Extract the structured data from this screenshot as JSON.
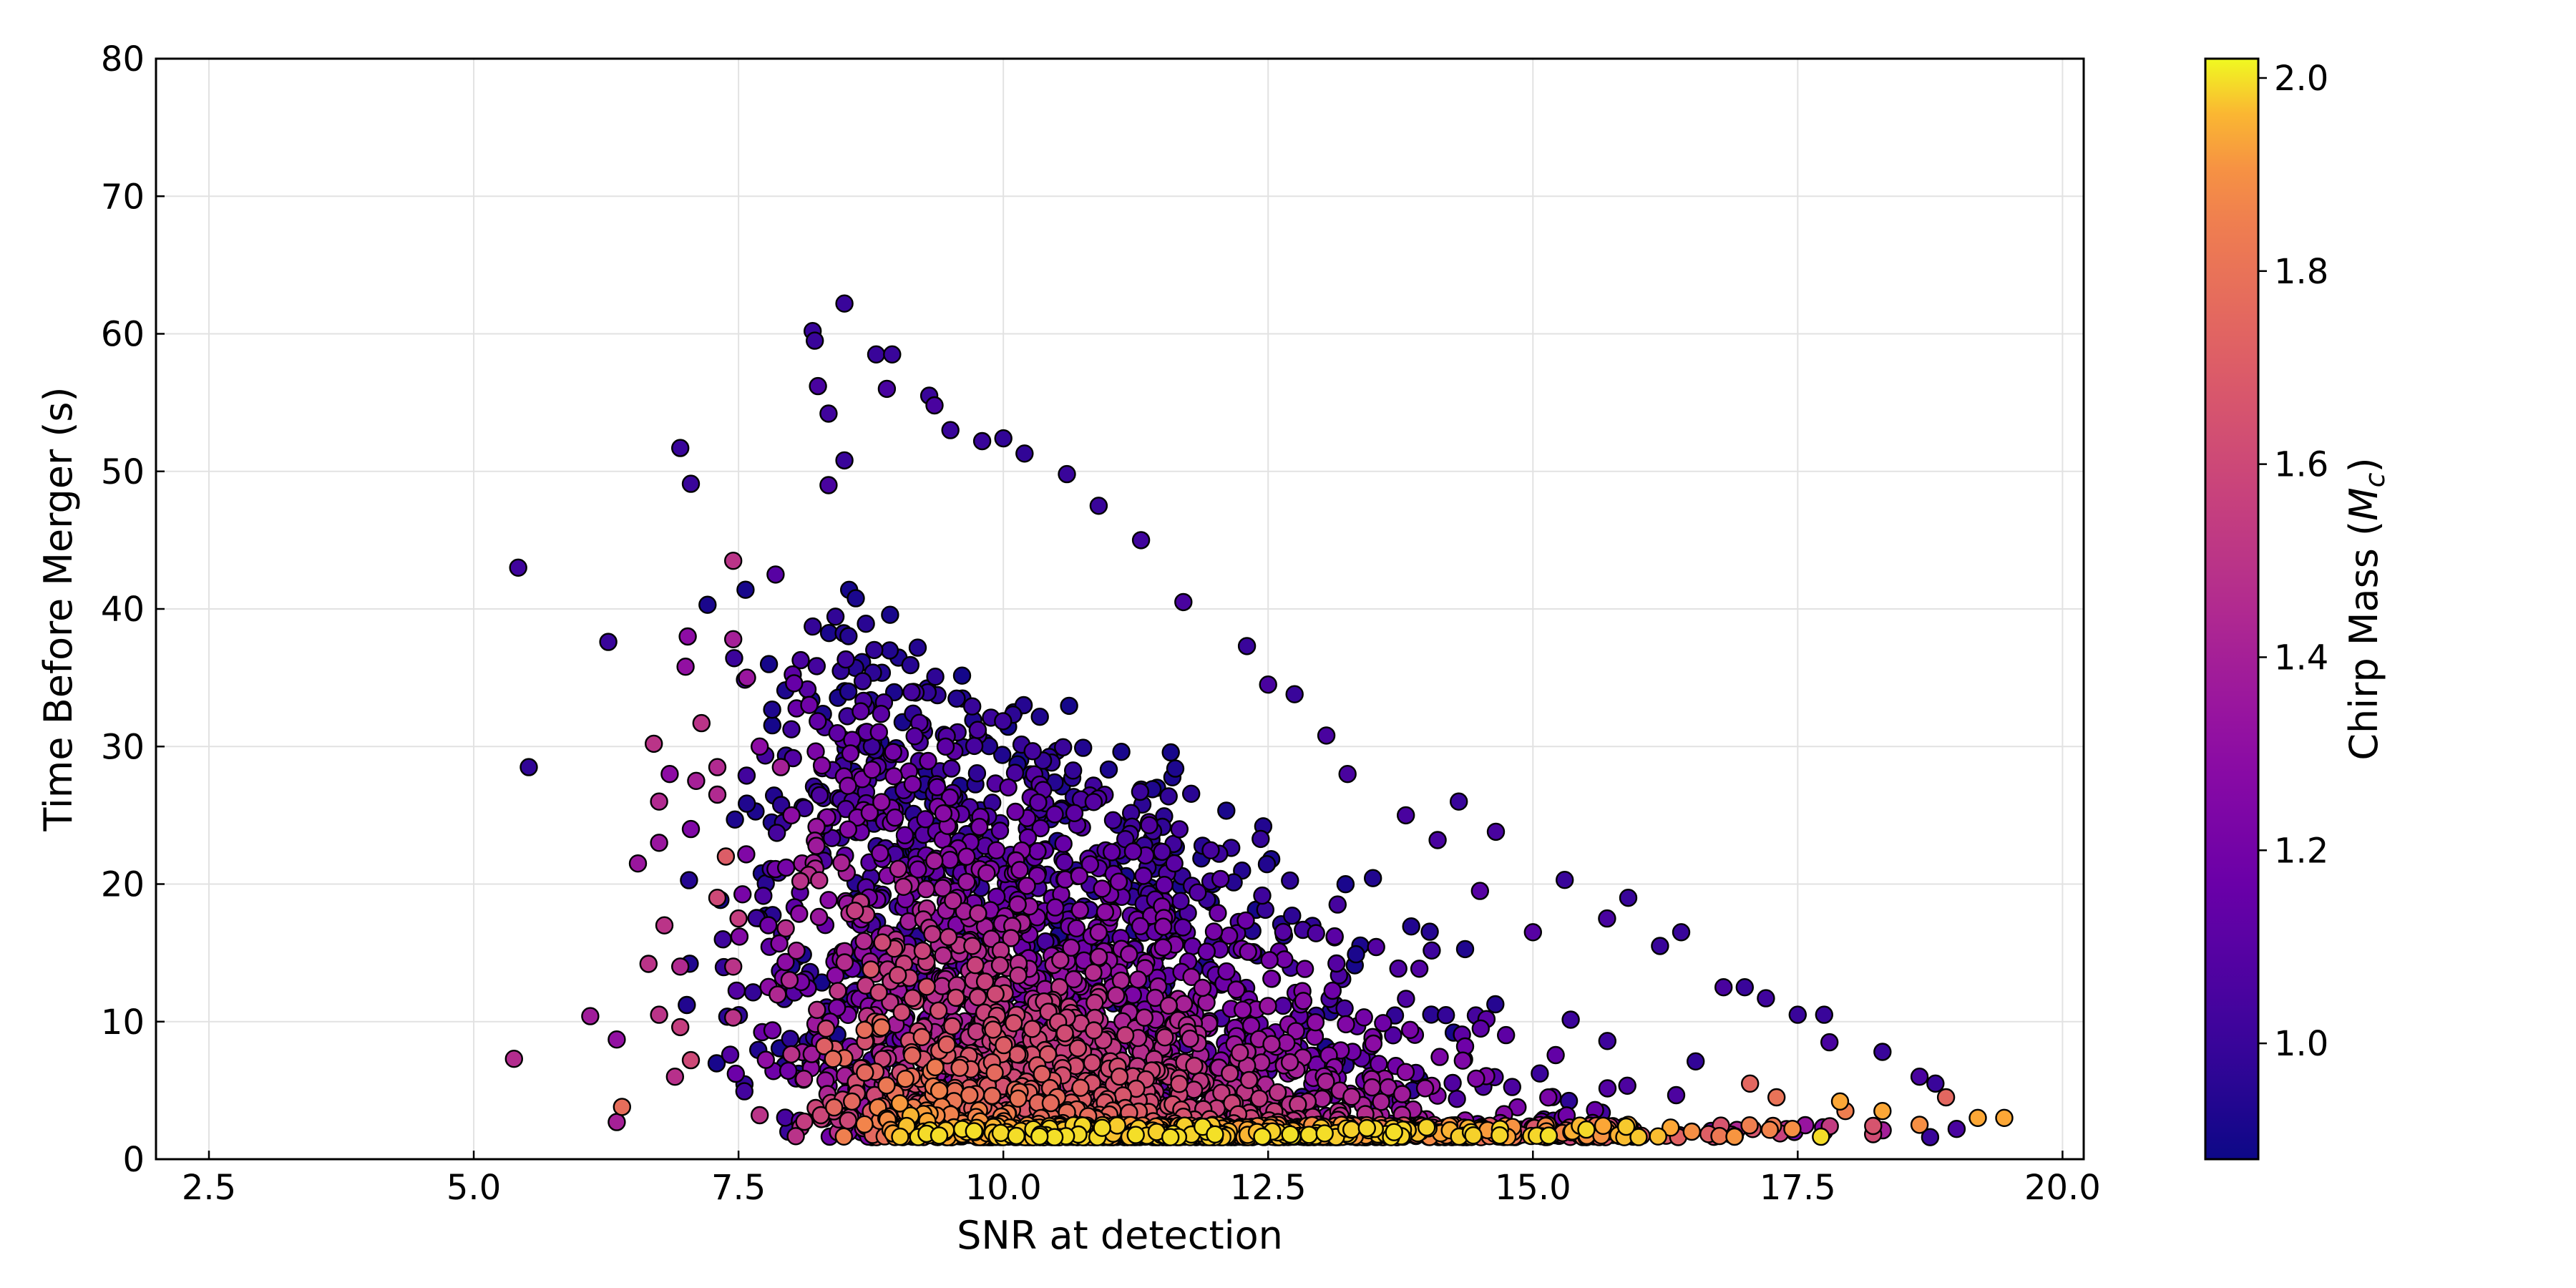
{
  "chart_data": {
    "type": "scatter",
    "xlabel": "SNR at detection",
    "ylabel": "Time Before Merger (s)",
    "xlim": [
      2.0,
      20.2
    ],
    "ylim": [
      0,
      80
    ],
    "xticks": [
      "2.5",
      "5.0",
      "7.5",
      "10.0",
      "12.5",
      "15.0",
      "17.5",
      "20.0"
    ],
    "yticks": [
      "0",
      "10",
      "20",
      "30",
      "40",
      "50",
      "60",
      "70",
      "80"
    ],
    "grid": true,
    "colormap": "plasma",
    "colorbar": {
      "label": "Chirp Mass (M_c)",
      "label_prefix": "Chirp Mass (",
      "label_symbol": "M",
      "label_subscript": "c",
      "label_suffix": ")",
      "range": [
        0.88,
        2.02
      ],
      "ticks": [
        "1.0",
        "1.2",
        "1.4",
        "1.6",
        "1.8",
        "2.0"
      ]
    },
    "points": [
      [
        5.42,
        43.0,
        1.02
      ],
      [
        5.52,
        28.5,
        0.98
      ],
      [
        6.27,
        37.6,
        1.0
      ],
      [
        5.38,
        7.3,
        1.46
      ],
      [
        6.1,
        10.4,
        1.38
      ],
      [
        6.35,
        8.7,
        1.32
      ],
      [
        6.4,
        3.8,
        1.78
      ],
      [
        6.35,
        2.7,
        1.4
      ],
      [
        6.55,
        21.5,
        1.35
      ],
      [
        6.65,
        14.2,
        1.5
      ],
      [
        6.7,
        30.2,
        1.5
      ],
      [
        6.75,
        26.0,
        1.45
      ],
      [
        6.85,
        28.0,
        1.3
      ],
      [
        6.75,
        23.0,
        1.35
      ],
      [
        6.8,
        17.0,
        1.5
      ],
      [
        6.75,
        10.5,
        1.5
      ],
      [
        6.9,
        6.0,
        1.48
      ],
      [
        6.95,
        9.6,
        1.55
      ],
      [
        6.95,
        14.0,
        1.45
      ],
      [
        6.95,
        51.7,
        1.0
      ],
      [
        7.05,
        49.1,
        1.0
      ],
      [
        7.02,
        38.0,
        1.3
      ],
      [
        7.0,
        35.8,
        1.32
      ],
      [
        7.05,
        24.0,
        1.25
      ],
      [
        7.1,
        27.5,
        1.4
      ],
      [
        7.15,
        31.7,
        1.5
      ],
      [
        7.05,
        7.2,
        1.6
      ],
      [
        7.3,
        28.5,
        1.45
      ],
      [
        7.3,
        26.5,
        1.45
      ],
      [
        7.3,
        19.0,
        1.6
      ],
      [
        7.38,
        22.0,
        1.7
      ],
      [
        7.45,
        43.5,
        1.5
      ],
      [
        7.45,
        37.8,
        1.4
      ],
      [
        7.45,
        10.3,
        1.5
      ],
      [
        7.5,
        17.5,
        1.55
      ],
      [
        7.45,
        14.0,
        1.5
      ],
      [
        7.58,
        35.0,
        1.35
      ],
      [
        7.7,
        3.2,
        1.5
      ],
      [
        7.7,
        30.0,
        1.3
      ],
      [
        7.85,
        42.5,
        1.1
      ],
      [
        7.9,
        28.5,
        1.4
      ],
      [
        8.0,
        25.0,
        1.3
      ],
      [
        8.1,
        21.5,
        1.35
      ],
      [
        8.2,
        60.2,
        1.0
      ],
      [
        8.22,
        59.5,
        1.0
      ],
      [
        8.25,
        56.2,
        1.05
      ],
      [
        8.35,
        54.2,
        1.02
      ],
      [
        8.5,
        62.2,
        1.0
      ],
      [
        8.5,
        50.8,
        1.0
      ],
      [
        8.35,
        49.0,
        1.05
      ],
      [
        8.8,
        58.5,
        1.0
      ],
      [
        8.95,
        58.5,
        1.0
      ],
      [
        8.9,
        56.0,
        1.05
      ],
      [
        9.3,
        55.5,
        1.0
      ],
      [
        9.35,
        54.8,
        1.05
      ],
      [
        9.5,
        53.0,
        1.0
      ],
      [
        9.8,
        52.2,
        1.0
      ],
      [
        10.0,
        52.4,
        0.98
      ],
      [
        10.2,
        51.3,
        0.98
      ],
      [
        10.6,
        49.8,
        1.0
      ],
      [
        10.9,
        47.5,
        1.0
      ],
      [
        11.3,
        45.0,
        1.02
      ],
      [
        11.7,
        40.5,
        1.05
      ],
      [
        12.3,
        37.3,
        1.0
      ],
      [
        12.5,
        34.5,
        1.05
      ],
      [
        12.75,
        33.8,
        1.0
      ],
      [
        13.05,
        30.8,
        1.05
      ],
      [
        13.25,
        28.0,
        1.05
      ],
      [
        13.8,
        25.0,
        1.05
      ],
      [
        14.1,
        23.2,
        1.05
      ],
      [
        14.3,
        26.0,
        1.0
      ],
      [
        14.65,
        23.8,
        1.05
      ],
      [
        14.5,
        19.5,
        1.1
      ],
      [
        15.0,
        16.5,
        1.1
      ],
      [
        15.3,
        20.3,
        1.0
      ],
      [
        15.7,
        17.5,
        1.05
      ],
      [
        15.9,
        19.0,
        1.0
      ],
      [
        16.2,
        15.5,
        1.0
      ],
      [
        16.4,
        16.5,
        1.0
      ],
      [
        16.8,
        12.5,
        1.05
      ],
      [
        17.0,
        12.5,
        1.0
      ],
      [
        17.2,
        11.7,
        1.02
      ],
      [
        17.5,
        10.5,
        1.0
      ],
      [
        17.75,
        10.5,
        1.0
      ],
      [
        17.8,
        8.5,
        1.05
      ],
      [
        18.3,
        7.8,
        1.0
      ],
      [
        18.65,
        6.0,
        1.05
      ],
      [
        18.8,
        5.5,
        1.0
      ],
      [
        18.75,
        1.6,
        1.0
      ],
      [
        19.0,
        2.2,
        1.05
      ],
      [
        17.75,
        2.0,
        1.0
      ],
      [
        17.45,
        2.2,
        1.9
      ],
      [
        17.9,
        4.2,
        1.95
      ],
      [
        17.95,
        3.5,
        1.85
      ],
      [
        18.3,
        3.5,
        1.95
      ],
      [
        18.65,
        2.5,
        1.9
      ],
      [
        19.2,
        3.0,
        1.95
      ],
      [
        19.45,
        3.0,
        1.95
      ],
      [
        18.9,
        4.5,
        1.75
      ],
      [
        17.3,
        4.5,
        1.8
      ],
      [
        17.05,
        5.5,
        1.75
      ],
      [
        16.5,
        2.0,
        1.9
      ],
      [
        16.3,
        2.3,
        1.95
      ],
      [
        15.9,
        2.5,
        1.95
      ],
      [
        15.7,
        2.0,
        1.9
      ],
      [
        15.5,
        2.0,
        1.0
      ]
    ]
  }
}
